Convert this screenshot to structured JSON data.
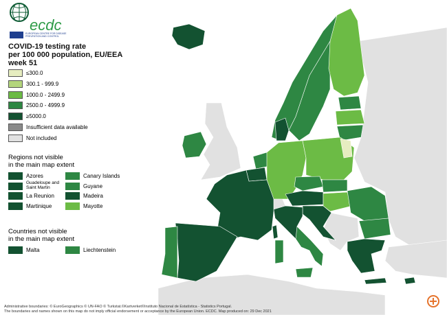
{
  "logo": {
    "name": "ecdc",
    "subtitle": "EUROPEAN CENTRE FOR DISEASE PREVENTION AND CONTROL"
  },
  "title": [
    "COVID-19 testing rate",
    "per 100 000 population, EU/EEA",
    "week 51"
  ],
  "legend": {
    "items": [
      {
        "label": "≤300.0",
        "color": "#e6edc0"
      },
      {
        "label": "300.1 - 999.9",
        "color": "#b3d57c"
      },
      {
        "label": "1000.0 - 2499.9",
        "color": "#6cbb45"
      },
      {
        "label": "2500.0 - 4999.9",
        "color": "#2e8743"
      },
      {
        "label": "≥5000.0",
        "color": "#135231"
      },
      {
        "label": "Insufficient data available",
        "color": "#8a8a8a"
      },
      {
        "label": "Not included",
        "color": "#e1e1e1"
      }
    ]
  },
  "regions": {
    "heading": [
      "Regions not visible",
      "in the main map extent"
    ],
    "items": [
      {
        "label": "Azores",
        "color": "#135231"
      },
      {
        "label": "Guadeloupe and Saint Martin",
        "color": "#135231"
      },
      {
        "label": "La Reunion",
        "color": "#135231"
      },
      {
        "label": "Martinique",
        "color": "#135231"
      },
      {
        "label": "Canary Islands",
        "color": "#2e8743"
      },
      {
        "label": "Guyane",
        "color": "#2e8743"
      },
      {
        "label": "Madeira",
        "color": "#135231"
      },
      {
        "label": "Mayotte",
        "color": "#6cbb45"
      }
    ]
  },
  "countries": {
    "heading": [
      "Countries not visible",
      "in the main map extent"
    ],
    "items": [
      {
        "label": "Malta",
        "color": "#135231"
      },
      {
        "label": "Liechtenstein",
        "color": "#2e8743"
      }
    ]
  },
  "footer": [
    "Administrative boundaries: © EuroGeographics © UN-FAO © Turkstat.©Kartverket©Instituto Nacional de Estatística - Statistics Portugal.",
    "The boundaries and names shown on this map do not imply official endorsement or acceptance by the European Union. ECDC. Map produced on: 29 Dec 2021"
  ]
}
